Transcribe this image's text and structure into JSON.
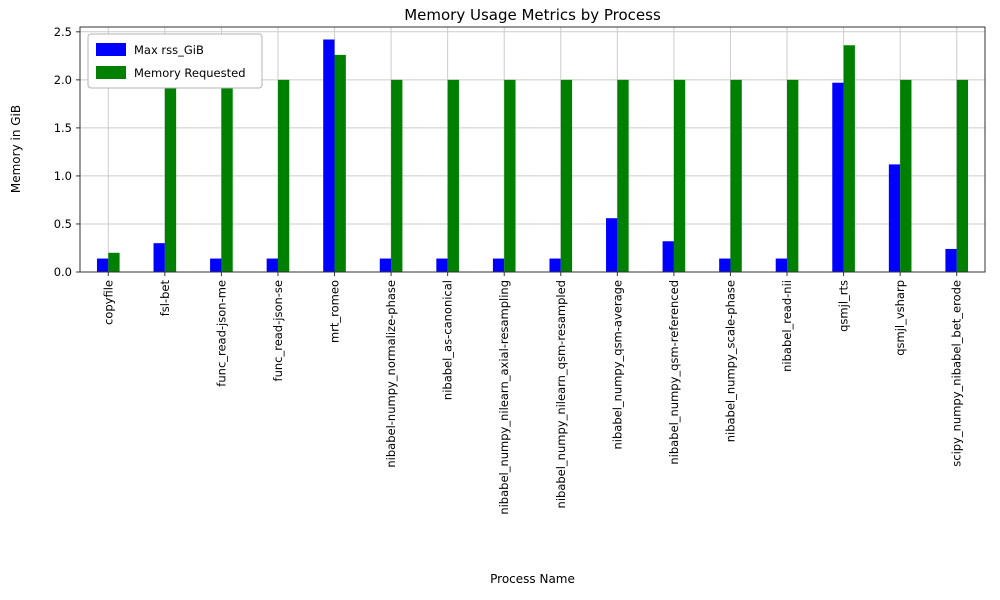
{
  "chart_data": {
    "type": "bar",
    "title": "Memory Usage Metrics by Process",
    "xlabel": "Process Name",
    "ylabel": "Memory in GiB",
    "categories": [
      "copyfile",
      "fsl-bet",
      "func_read-json-me",
      "func_read-json-se",
      "mrt_romeo",
      "nibabel-numpy_normalize-phase",
      "nibabel_as-canonical",
      "nibabel_numpy_nilearn_axial-resampling",
      "nibabel_numpy_nilearn_qsm-resampled",
      "nibabel_numpy_qsm-average",
      "nibabel_numpy_qsm-referenced",
      "nibabel_numpy_scale-phase",
      "nibabel_read-nii",
      "qsmjl_rts",
      "qsmjl_vsharp",
      "scipy_numpy_nibabel_bet_erode"
    ],
    "series": [
      {
        "name": "Max rss_GiB",
        "color": "#0000ff",
        "values": [
          0.14,
          0.3,
          0.14,
          0.14,
          2.42,
          0.14,
          0.14,
          0.14,
          0.14,
          0.56,
          0.32,
          0.14,
          0.14,
          1.97,
          1.12,
          0.24
        ]
      },
      {
        "name": "Memory Requested",
        "color": "#008000",
        "values": [
          0.2,
          2.0,
          2.0,
          2.0,
          2.26,
          2.0,
          2.0,
          2.0,
          2.0,
          2.0,
          2.0,
          2.0,
          2.0,
          2.36,
          2.0,
          2.0
        ]
      }
    ],
    "ylim": [
      0,
      2.55
    ],
    "yticks": [
      0.0,
      0.5,
      1.0,
      1.5,
      2.0,
      2.5
    ],
    "grid": true,
    "legend_position": "upper-left",
    "colors": {
      "grid": "#cccccc",
      "spine": "#333333",
      "text": "#000000",
      "legend_border": "#b3b3b3",
      "background": "#ffffff"
    }
  }
}
